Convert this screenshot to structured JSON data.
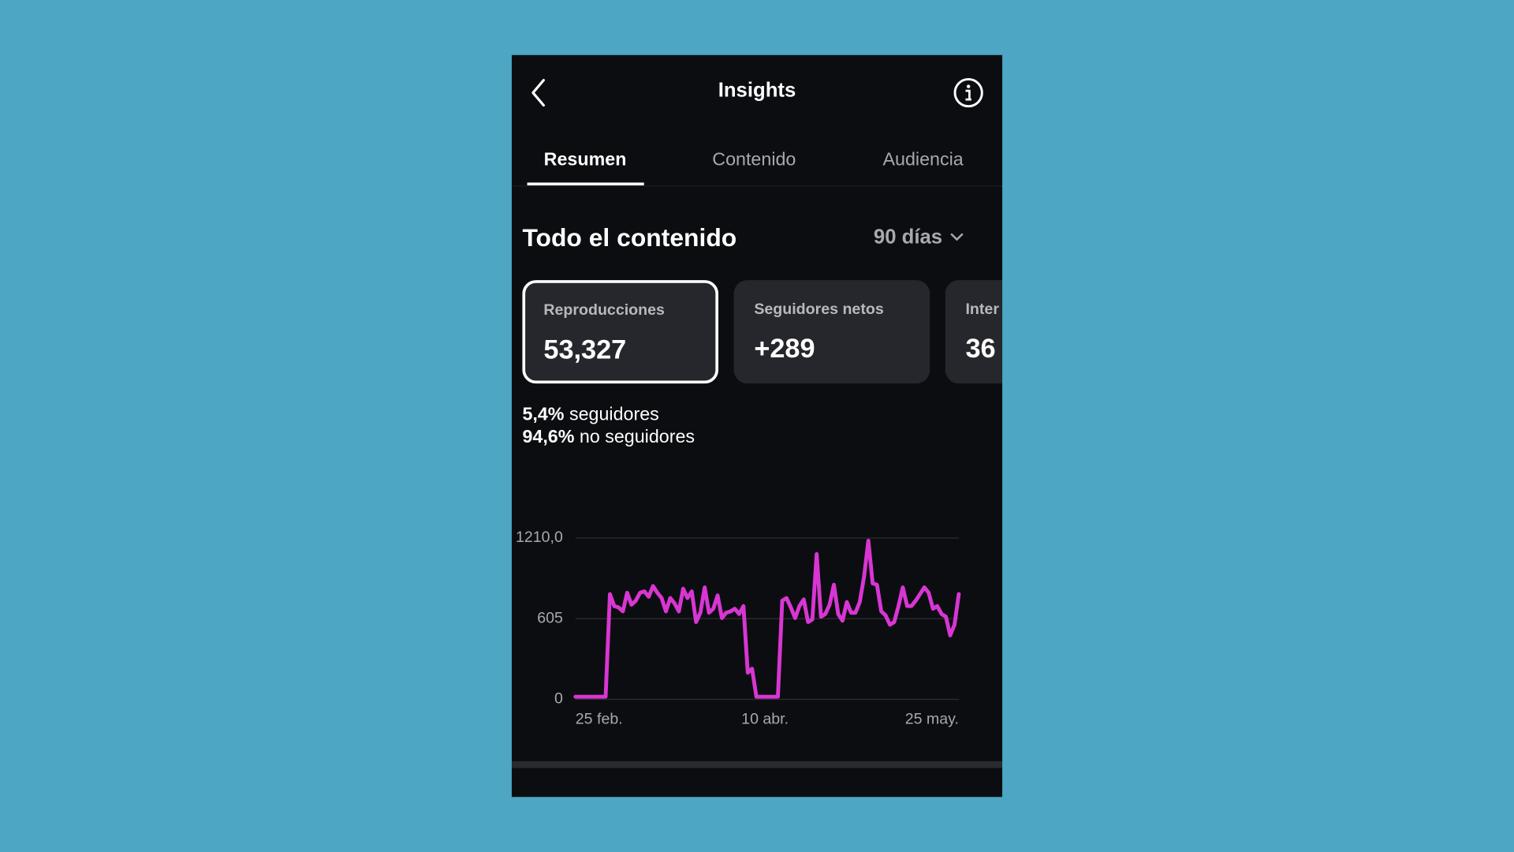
{
  "header": {
    "title": "Insights"
  },
  "tabs": [
    "Resumen",
    "Contenido",
    "Audiencia"
  ],
  "section": {
    "title": "Todo el contenido",
    "period": "90 días"
  },
  "cards": [
    {
      "label": "Reproducciones",
      "value": "53,327"
    },
    {
      "label": "Seguidores netos",
      "value": "+289"
    },
    {
      "label": "Inter",
      "value": "36"
    }
  ],
  "breakdown": [
    {
      "share": "5,4%",
      "label": "seguidores"
    },
    {
      "share": "94,6%",
      "label": "no seguidores"
    }
  ],
  "chart_data": {
    "type": "line",
    "categories": [
      "25 feb.",
      null,
      null,
      null,
      null,
      null,
      null,
      null,
      null,
      null,
      null,
      null,
      null,
      null,
      null,
      null,
      null,
      null,
      null,
      null,
      null,
      null,
      null,
      null,
      null,
      null,
      null,
      null,
      null,
      null,
      null,
      null,
      null,
      null,
      null,
      null,
      null,
      null,
      null,
      null,
      null,
      null,
      null,
      null,
      "10 abr.",
      null,
      null,
      null,
      null,
      null,
      null,
      null,
      null,
      null,
      null,
      null,
      null,
      null,
      null,
      null,
      null,
      null,
      null,
      null,
      null,
      null,
      null,
      null,
      null,
      null,
      null,
      null,
      null,
      null,
      null,
      null,
      null,
      null,
      null,
      null,
      null,
      null,
      null,
      null,
      null,
      null,
      null,
      null,
      null,
      "25 may."
    ],
    "values": [
      20,
      20,
      20,
      20,
      20,
      20,
      20,
      20,
      790,
      700,
      690,
      660,
      800,
      710,
      740,
      800,
      810,
      770,
      850,
      800,
      760,
      660,
      760,
      720,
      660,
      830,
      760,
      810,
      580,
      650,
      840,
      650,
      680,
      780,
      610,
      650,
      660,
      680,
      640,
      700,
      200,
      230,
      20,
      20,
      20,
      20,
      20,
      20,
      740,
      760,
      690,
      610,
      700,
      750,
      580,
      600,
      1090,
      620,
      640,
      710,
      860,
      640,
      590,
      730,
      650,
      650,
      730,
      920,
      1190,
      870,
      860,
      660,
      630,
      560,
      580,
      700,
      840,
      700,
      700,
      740,
      790,
      840,
      800,
      680,
      700,
      640,
      620,
      480,
      560,
      790
    ],
    "color": "#d836d2",
    "ylim": [
      0,
      1210
    ],
    "yticks": [
      0,
      605,
      {
        "value": 1210,
        "label": "1210,0"
      }
    ],
    "grid": true
  }
}
